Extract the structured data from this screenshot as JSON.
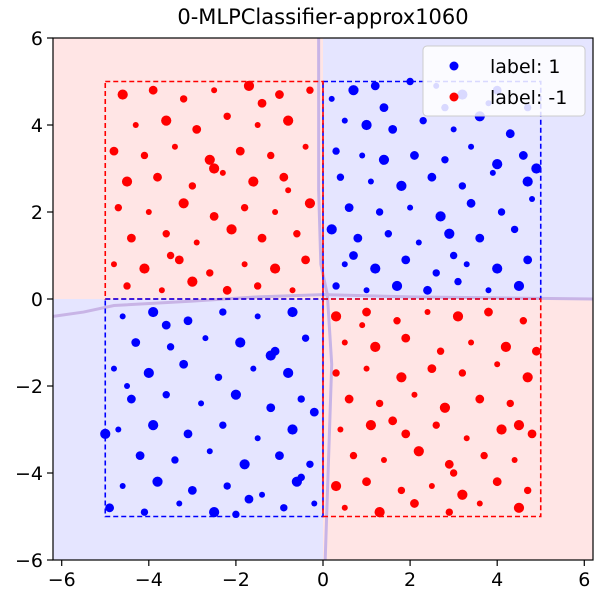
{
  "chart_data": {
    "type": "scatter",
    "title": "0-MLPClassifier-approx1060",
    "xlabel": "",
    "ylabel": "",
    "xlim": [
      -6.2,
      6.2
    ],
    "ylim": [
      -6,
      6
    ],
    "xticks": [
      -6,
      -4,
      -2,
      0,
      2,
      4,
      6
    ],
    "yticks": [
      -6,
      -4,
      -2,
      0,
      2,
      4,
      6
    ],
    "xtick_labels": [
      "−6",
      "−4",
      "−2",
      "0",
      "2",
      "4",
      "6"
    ],
    "ytick_labels": [
      "−6",
      "−4",
      "−2",
      "0",
      "2",
      "4",
      "6"
    ],
    "grid": false,
    "legend_position": "top-right",
    "legend": [
      {
        "label": "label: 1",
        "color": "#0000ff"
      },
      {
        "label": "label: -1",
        "color": "#ff0000"
      }
    ],
    "colors": {
      "label_1": "#0000ff",
      "label_neg1": "#ff0000",
      "region_1": "#e5e5ff",
      "region_neg1": "#ffe5e5",
      "boundary": "#c8b4e6"
    },
    "regions": [
      {
        "label": 1,
        "x": [
          0,
          5
        ],
        "y": [
          0,
          5
        ]
      },
      {
        "label": -1,
        "x": [
          -5,
          0
        ],
        "y": [
          0,
          5
        ]
      },
      {
        "label": 1,
        "x": [
          -5,
          0
        ],
        "y": [
          -5,
          0
        ]
      },
      {
        "label": -1,
        "x": [
          0,
          5
        ],
        "y": [
          -5,
          0
        ]
      }
    ],
    "decision_boundary": {
      "vertical": [
        [
          -0.1,
          6
        ],
        [
          -0.1,
          2.5
        ],
        [
          -0.05,
          0.8
        ],
        [
          0.1,
          0.1
        ],
        [
          0.2,
          -1.5
        ],
        [
          0.05,
          -6
        ]
      ],
      "horizontal": [
        [
          -6.2,
          -0.4
        ],
        [
          -5.5,
          -0.3
        ],
        [
          -4.8,
          -0.15
        ],
        [
          -3,
          -0.05
        ],
        [
          -1.5,
          0.05
        ],
        [
          0,
          0.1
        ],
        [
          2,
          0.05
        ],
        [
          6.2,
          0
        ]
      ]
    },
    "series": [
      {
        "name": "label: 1",
        "color": "#0000ff",
        "points": [
          [
            0.2,
            4.6
          ],
          [
            0.7,
            4.8
          ],
          [
            1.2,
            4.9
          ],
          [
            2.0,
            5.0
          ],
          [
            2.6,
            4.9
          ],
          [
            3.2,
            4.7
          ],
          [
            4.0,
            4.8
          ],
          [
            4.7,
            4.4
          ],
          [
            0.5,
            4.1
          ],
          [
            1.0,
            4.0
          ],
          [
            1.6,
            3.9
          ],
          [
            2.3,
            4.1
          ],
          [
            3.0,
            3.9
          ],
          [
            3.6,
            4.2
          ],
          [
            4.3,
            3.8
          ],
          [
            0.3,
            3.4
          ],
          [
            0.9,
            3.3
          ],
          [
            1.4,
            3.2
          ],
          [
            2.1,
            3.3
          ],
          [
            2.8,
            3.2
          ],
          [
            3.4,
            3.5
          ],
          [
            4.0,
            3.1
          ],
          [
            4.6,
            3.3
          ],
          [
            0.4,
            2.8
          ],
          [
            1.1,
            2.7
          ],
          [
            1.8,
            2.6
          ],
          [
            2.5,
            2.8
          ],
          [
            3.2,
            2.6
          ],
          [
            3.9,
            2.9
          ],
          [
            4.7,
            2.7
          ],
          [
            0.6,
            2.1
          ],
          [
            1.3,
            2.0
          ],
          [
            2.0,
            2.1
          ],
          [
            2.7,
            1.9
          ],
          [
            3.4,
            2.2
          ],
          [
            4.1,
            2.0
          ],
          [
            4.8,
            2.3
          ],
          [
            0.2,
            1.6
          ],
          [
            0.8,
            1.4
          ],
          [
            1.5,
            1.5
          ],
          [
            2.2,
            1.3
          ],
          [
            2.9,
            1.5
          ],
          [
            3.6,
            1.4
          ],
          [
            4.4,
            1.6
          ],
          [
            0.5,
            0.8
          ],
          [
            1.2,
            0.7
          ],
          [
            1.9,
            0.9
          ],
          [
            2.6,
            0.6
          ],
          [
            3.3,
            0.8
          ],
          [
            4.0,
            0.7
          ],
          [
            4.7,
            0.9
          ],
          [
            0.3,
            0.3
          ],
          [
            1.0,
            0.2
          ],
          [
            1.7,
            0.3
          ],
          [
            2.4,
            0.2
          ],
          [
            3.1,
            0.4
          ],
          [
            3.8,
            0.2
          ],
          [
            4.5,
            0.3
          ],
          [
            1.4,
            4.4
          ],
          [
            2.8,
            4.4
          ],
          [
            3.8,
            4.5
          ],
          [
            4.9,
            3.0
          ],
          [
            0.7,
            1.0
          ],
          [
            3.0,
            1.0
          ],
          [
            -4.6,
            -0.4
          ],
          [
            -3.9,
            -0.3
          ],
          [
            -3.1,
            -0.5
          ],
          [
            -2.3,
            -0.3
          ],
          [
            -1.5,
            -0.4
          ],
          [
            -0.7,
            -0.3
          ],
          [
            -4.3,
            -1.0
          ],
          [
            -3.5,
            -1.1
          ],
          [
            -2.7,
            -0.9
          ],
          [
            -1.9,
            -1.0
          ],
          [
            -1.1,
            -1.2
          ],
          [
            -0.4,
            -0.9
          ],
          [
            -4.8,
            -1.6
          ],
          [
            -4.0,
            -1.7
          ],
          [
            -3.2,
            -1.5
          ],
          [
            -2.4,
            -1.8
          ],
          [
            -1.6,
            -1.6
          ],
          [
            -0.8,
            -1.7
          ],
          [
            -4.4,
            -2.3
          ],
          [
            -3.6,
            -2.2
          ],
          [
            -2.8,
            -2.4
          ],
          [
            -2.0,
            -2.2
          ],
          [
            -1.2,
            -2.5
          ],
          [
            -0.5,
            -2.3
          ],
          [
            -4.7,
            -3.0
          ],
          [
            -3.9,
            -2.9
          ],
          [
            -3.1,
            -3.1
          ],
          [
            -2.3,
            -2.9
          ],
          [
            -1.5,
            -3.2
          ],
          [
            -0.7,
            -3.0
          ],
          [
            -4.2,
            -3.6
          ],
          [
            -3.4,
            -3.7
          ],
          [
            -2.6,
            -3.5
          ],
          [
            -1.8,
            -3.8
          ],
          [
            -1.0,
            -3.6
          ],
          [
            -0.3,
            -3.8
          ],
          [
            -4.6,
            -4.3
          ],
          [
            -3.8,
            -4.2
          ],
          [
            -3.0,
            -4.4
          ],
          [
            -2.2,
            -4.3
          ],
          [
            -1.4,
            -4.5
          ],
          [
            -0.6,
            -4.2
          ],
          [
            -4.9,
            -4.8
          ],
          [
            -4.1,
            -4.9
          ],
          [
            -3.3,
            -4.7
          ],
          [
            -2.5,
            -4.9
          ],
          [
            -1.7,
            -4.6
          ],
          [
            -0.9,
            -4.8
          ],
          [
            -0.2,
            -4.7
          ],
          [
            -5.0,
            -3.1
          ],
          [
            -0.2,
            -2.6
          ],
          [
            -2.0,
            -4.95
          ],
          [
            -4.5,
            -2.0
          ],
          [
            -1.2,
            -1.3
          ],
          [
            -3.6,
            -0.6
          ],
          [
            -0.5,
            -4.1
          ]
        ]
      },
      {
        "name": "label: -1",
        "color": "#ff0000",
        "points": [
          [
            -4.6,
            4.7
          ],
          [
            -3.9,
            4.8
          ],
          [
            -3.2,
            4.6
          ],
          [
            -2.5,
            4.8
          ],
          [
            -1.7,
            4.9
          ],
          [
            -1.0,
            4.7
          ],
          [
            -0.3,
            4.8
          ],
          [
            -4.3,
            4.0
          ],
          [
            -3.6,
            4.1
          ],
          [
            -2.9,
            3.9
          ],
          [
            -2.2,
            4.2
          ],
          [
            -1.5,
            4.0
          ],
          [
            -0.8,
            4.1
          ],
          [
            -4.8,
            3.4
          ],
          [
            -4.1,
            3.3
          ],
          [
            -3.4,
            3.5
          ],
          [
            -2.6,
            3.2
          ],
          [
            -1.9,
            3.4
          ],
          [
            -1.2,
            3.3
          ],
          [
            -0.4,
            3.5
          ],
          [
            -4.5,
            2.7
          ],
          [
            -3.8,
            2.8
          ],
          [
            -3.0,
            2.6
          ],
          [
            -2.3,
            2.9
          ],
          [
            -1.6,
            2.7
          ],
          [
            -0.9,
            2.8
          ],
          [
            -4.7,
            2.1
          ],
          [
            -4.0,
            2.0
          ],
          [
            -3.2,
            2.2
          ],
          [
            -2.5,
            1.9
          ],
          [
            -1.8,
            2.1
          ],
          [
            -1.1,
            2.0
          ],
          [
            -0.3,
            2.2
          ],
          [
            -4.4,
            1.4
          ],
          [
            -3.6,
            1.5
          ],
          [
            -2.9,
            1.3
          ],
          [
            -2.1,
            1.6
          ],
          [
            -1.4,
            1.4
          ],
          [
            -0.6,
            1.5
          ],
          [
            -4.8,
            0.8
          ],
          [
            -4.1,
            0.7
          ],
          [
            -3.3,
            0.9
          ],
          [
            -2.6,
            0.6
          ],
          [
            -1.8,
            0.8
          ],
          [
            -1.1,
            0.7
          ],
          [
            -0.4,
            0.9
          ],
          [
            -4.5,
            0.3
          ],
          [
            -3.7,
            0.2
          ],
          [
            -3.0,
            0.4
          ],
          [
            -2.2,
            0.2
          ],
          [
            -1.5,
            0.3
          ],
          [
            -0.7,
            0.2
          ],
          [
            -2.5,
            3.0
          ],
          [
            -1.4,
            4.5
          ],
          [
            -3.5,
            1.0
          ],
          [
            -0.8,
            2.5
          ],
          [
            0.3,
            -0.4
          ],
          [
            1.0,
            -0.3
          ],
          [
            1.7,
            -0.5
          ],
          [
            2.4,
            -0.3
          ],
          [
            3.1,
            -0.4
          ],
          [
            3.8,
            -0.3
          ],
          [
            4.6,
            -0.5
          ],
          [
            0.5,
            -1.0
          ],
          [
            1.2,
            -1.1
          ],
          [
            1.9,
            -0.9
          ],
          [
            2.7,
            -1.2
          ],
          [
            3.4,
            -1.0
          ],
          [
            4.2,
            -1.1
          ],
          [
            4.9,
            -1.2
          ],
          [
            0.3,
            -1.7
          ],
          [
            1.0,
            -1.6
          ],
          [
            1.8,
            -1.8
          ],
          [
            2.5,
            -1.6
          ],
          [
            3.2,
            -1.7
          ],
          [
            4.0,
            -1.5
          ],
          [
            4.7,
            -1.8
          ],
          [
            0.6,
            -2.3
          ],
          [
            1.3,
            -2.4
          ],
          [
            2.1,
            -2.2
          ],
          [
            2.8,
            -2.5
          ],
          [
            3.6,
            -2.3
          ],
          [
            4.3,
            -2.4
          ],
          [
            0.4,
            -3.0
          ],
          [
            1.1,
            -2.9
          ],
          [
            1.9,
            -3.1
          ],
          [
            2.6,
            -2.9
          ],
          [
            3.3,
            -3.2
          ],
          [
            4.1,
            -3.0
          ],
          [
            4.8,
            -3.1
          ],
          [
            0.7,
            -3.6
          ],
          [
            1.4,
            -3.7
          ],
          [
            2.2,
            -3.5
          ],
          [
            2.9,
            -3.8
          ],
          [
            3.7,
            -3.6
          ],
          [
            4.4,
            -3.7
          ],
          [
            0.3,
            -4.3
          ],
          [
            1.0,
            -4.2
          ],
          [
            1.8,
            -4.4
          ],
          [
            2.5,
            -4.3
          ],
          [
            3.2,
            -4.5
          ],
          [
            4.0,
            -4.2
          ],
          [
            4.7,
            -4.4
          ],
          [
            0.5,
            -4.8
          ],
          [
            1.3,
            -4.9
          ],
          [
            2.1,
            -4.7
          ],
          [
            2.9,
            -4.9
          ],
          [
            3.6,
            -4.7
          ],
          [
            4.5,
            -4.8
          ],
          [
            1.6,
            -2.8
          ],
          [
            3.0,
            -4.0
          ],
          [
            0.9,
            -0.6
          ],
          [
            4.5,
            -2.9
          ]
        ]
      }
    ]
  }
}
